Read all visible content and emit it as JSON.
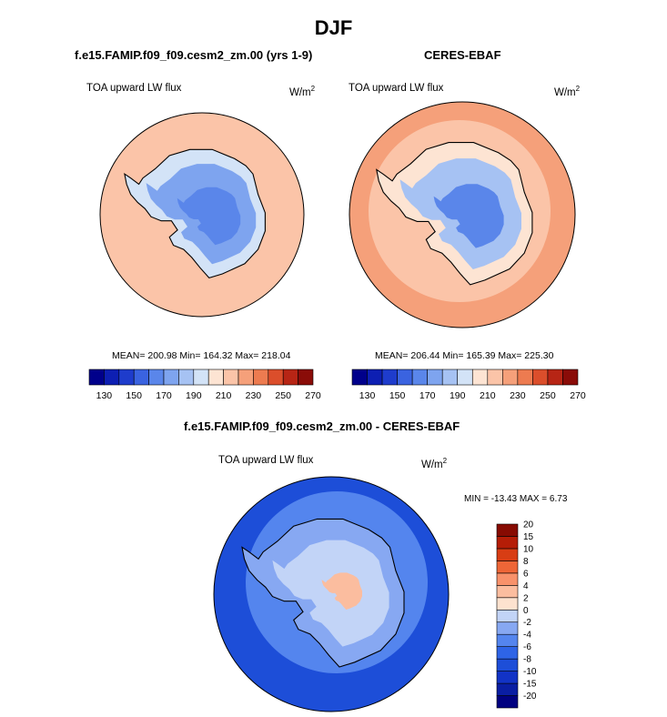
{
  "figure": {
    "season": "DJF",
    "panels": [
      {
        "title": "f.e15.FAMIP.f09_f09.cesm2_zm.00 (yrs 1-9)",
        "variable": "TOA upward LW flux",
        "units": "W/m",
        "units_sup": "2",
        "stats": "MEAN= 200.98  Min= 164.32  Max= 218.04"
      },
      {
        "title": "CERES-EBAF",
        "variable": "TOA upward LW flux",
        "units": "W/m",
        "units_sup": "2",
        "stats": "MEAN= 206.44  Min= 165.39  Max= 225.30"
      }
    ],
    "diff_panel": {
      "title": "f.e15.FAMIP.f09_f09.cesm2_zm.00 - CERES-EBAF",
      "variable": "TOA upward LW flux",
      "units": "W/m",
      "units_sup": "2",
      "stats": "MIN = -13.43 MAX =   6.73"
    }
  },
  "chart_data": [
    {
      "type": "heatmap",
      "projection": "south-polar-stereographic",
      "title": "f.e15.FAMIP.f09_f09.cesm2_zm.00 (yrs 1-9)",
      "variable": "TOA upward LW flux",
      "units": "W/m^2",
      "mean": 200.98,
      "min": 164.32,
      "max": 218.04,
      "levels": [
        130,
        140,
        150,
        160,
        170,
        180,
        190,
        200,
        210,
        220,
        230,
        240,
        250,
        260,
        270
      ],
      "colorbar_ticks": [
        130,
        150,
        170,
        190,
        210,
        230,
        250,
        270
      ],
      "field": {
        "ocean": 212,
        "coast": 195,
        "interior": 178,
        "core": 166
      }
    },
    {
      "type": "heatmap",
      "projection": "south-polar-stereographic",
      "title": "CERES-EBAF",
      "variable": "TOA upward LW flux",
      "units": "W/m^2",
      "mean": 206.44,
      "min": 165.39,
      "max": 225.3,
      "levels": [
        130,
        140,
        150,
        160,
        170,
        180,
        190,
        200,
        210,
        220,
        230,
        240,
        250,
        260,
        270
      ],
      "colorbar_ticks": [
        130,
        150,
        170,
        190,
        210,
        230,
        250,
        270
      ],
      "field": {
        "ocean": 218,
        "outer_ring": 225,
        "coast": 200,
        "interior": 180,
        "core": 168
      }
    },
    {
      "type": "heatmap",
      "projection": "south-polar-stereographic",
      "title": "f.e15.FAMIP.f09_f09.cesm2_zm.00 - CERES-EBAF",
      "variable": "TOA upward LW flux",
      "units": "W/m^2",
      "min": -13.43,
      "max": 6.73,
      "levels": [
        -20,
        -15,
        -10,
        -8,
        -6,
        -4,
        -2,
        0,
        2,
        4,
        6,
        8,
        10,
        15,
        20
      ],
      "field": {
        "ocean_outer": -9,
        "ocean_inner": -6,
        "coast": -4,
        "interior": -1,
        "pole": 2
      }
    }
  ],
  "colors": {
    "abs_scale": [
      "#00008b",
      "#0d1fb3",
      "#1e3ccc",
      "#3a63e0",
      "#5a86ea",
      "#7ea4ef",
      "#a6c2f3",
      "#d3e3f7",
      "#fde4d3",
      "#fbc4a8",
      "#f5a07a",
      "#ed7b50",
      "#db4e2b",
      "#b72515",
      "#8a0c08"
    ],
    "diff_scale": [
      "#010180",
      "#0a1ea3",
      "#1233c6",
      "#1d4ed8",
      "#2e64e6",
      "#5485ee",
      "#87a8f2",
      "#c2d4f7",
      "#fde2cf",
      "#fbbd9f",
      "#f8926b",
      "#ee6637",
      "#d83d14",
      "#b51d07",
      "#870b02"
    ],
    "coastline": "#000000"
  }
}
